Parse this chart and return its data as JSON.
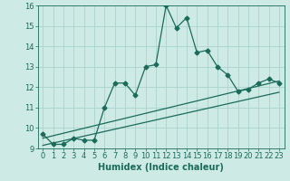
{
  "xlabel": "Humidex (Indice chaleur)",
  "ylabel": "",
  "background_color": "#ceeae4",
  "grid_color": "#aad4cc",
  "line_color": "#1a6b5a",
  "xlim": [
    -0.5,
    23.5
  ],
  "ylim": [
    9,
    16
  ],
  "xticks": [
    0,
    1,
    2,
    3,
    4,
    5,
    6,
    7,
    8,
    9,
    10,
    11,
    12,
    13,
    14,
    15,
    16,
    17,
    18,
    19,
    20,
    21,
    22,
    23
  ],
  "yticks": [
    9,
    10,
    11,
    12,
    13,
    14,
    15,
    16
  ],
  "curve1_x": [
    0,
    1,
    2,
    3,
    4,
    5,
    6,
    7,
    8,
    9,
    10,
    11,
    12,
    13,
    14,
    15,
    16,
    17,
    18,
    19,
    20,
    21,
    22,
    23
  ],
  "curve1_y": [
    9.7,
    9.2,
    9.2,
    9.5,
    9.4,
    9.4,
    11.0,
    12.2,
    12.2,
    11.6,
    13.0,
    13.1,
    16.0,
    14.9,
    15.4,
    13.7,
    13.8,
    13.0,
    12.6,
    11.8,
    11.9,
    12.2,
    12.4,
    12.2
  ],
  "curve2_x": [
    0,
    23
  ],
  "curve2_y": [
    9.5,
    12.3
  ],
  "curve3_x": [
    0,
    23
  ],
  "curve3_y": [
    9.15,
    11.75
  ],
  "marker": "D",
  "markersize": 2.5,
  "linewidth": 0.9,
  "fontsize_label": 7,
  "fontsize_tick": 6
}
